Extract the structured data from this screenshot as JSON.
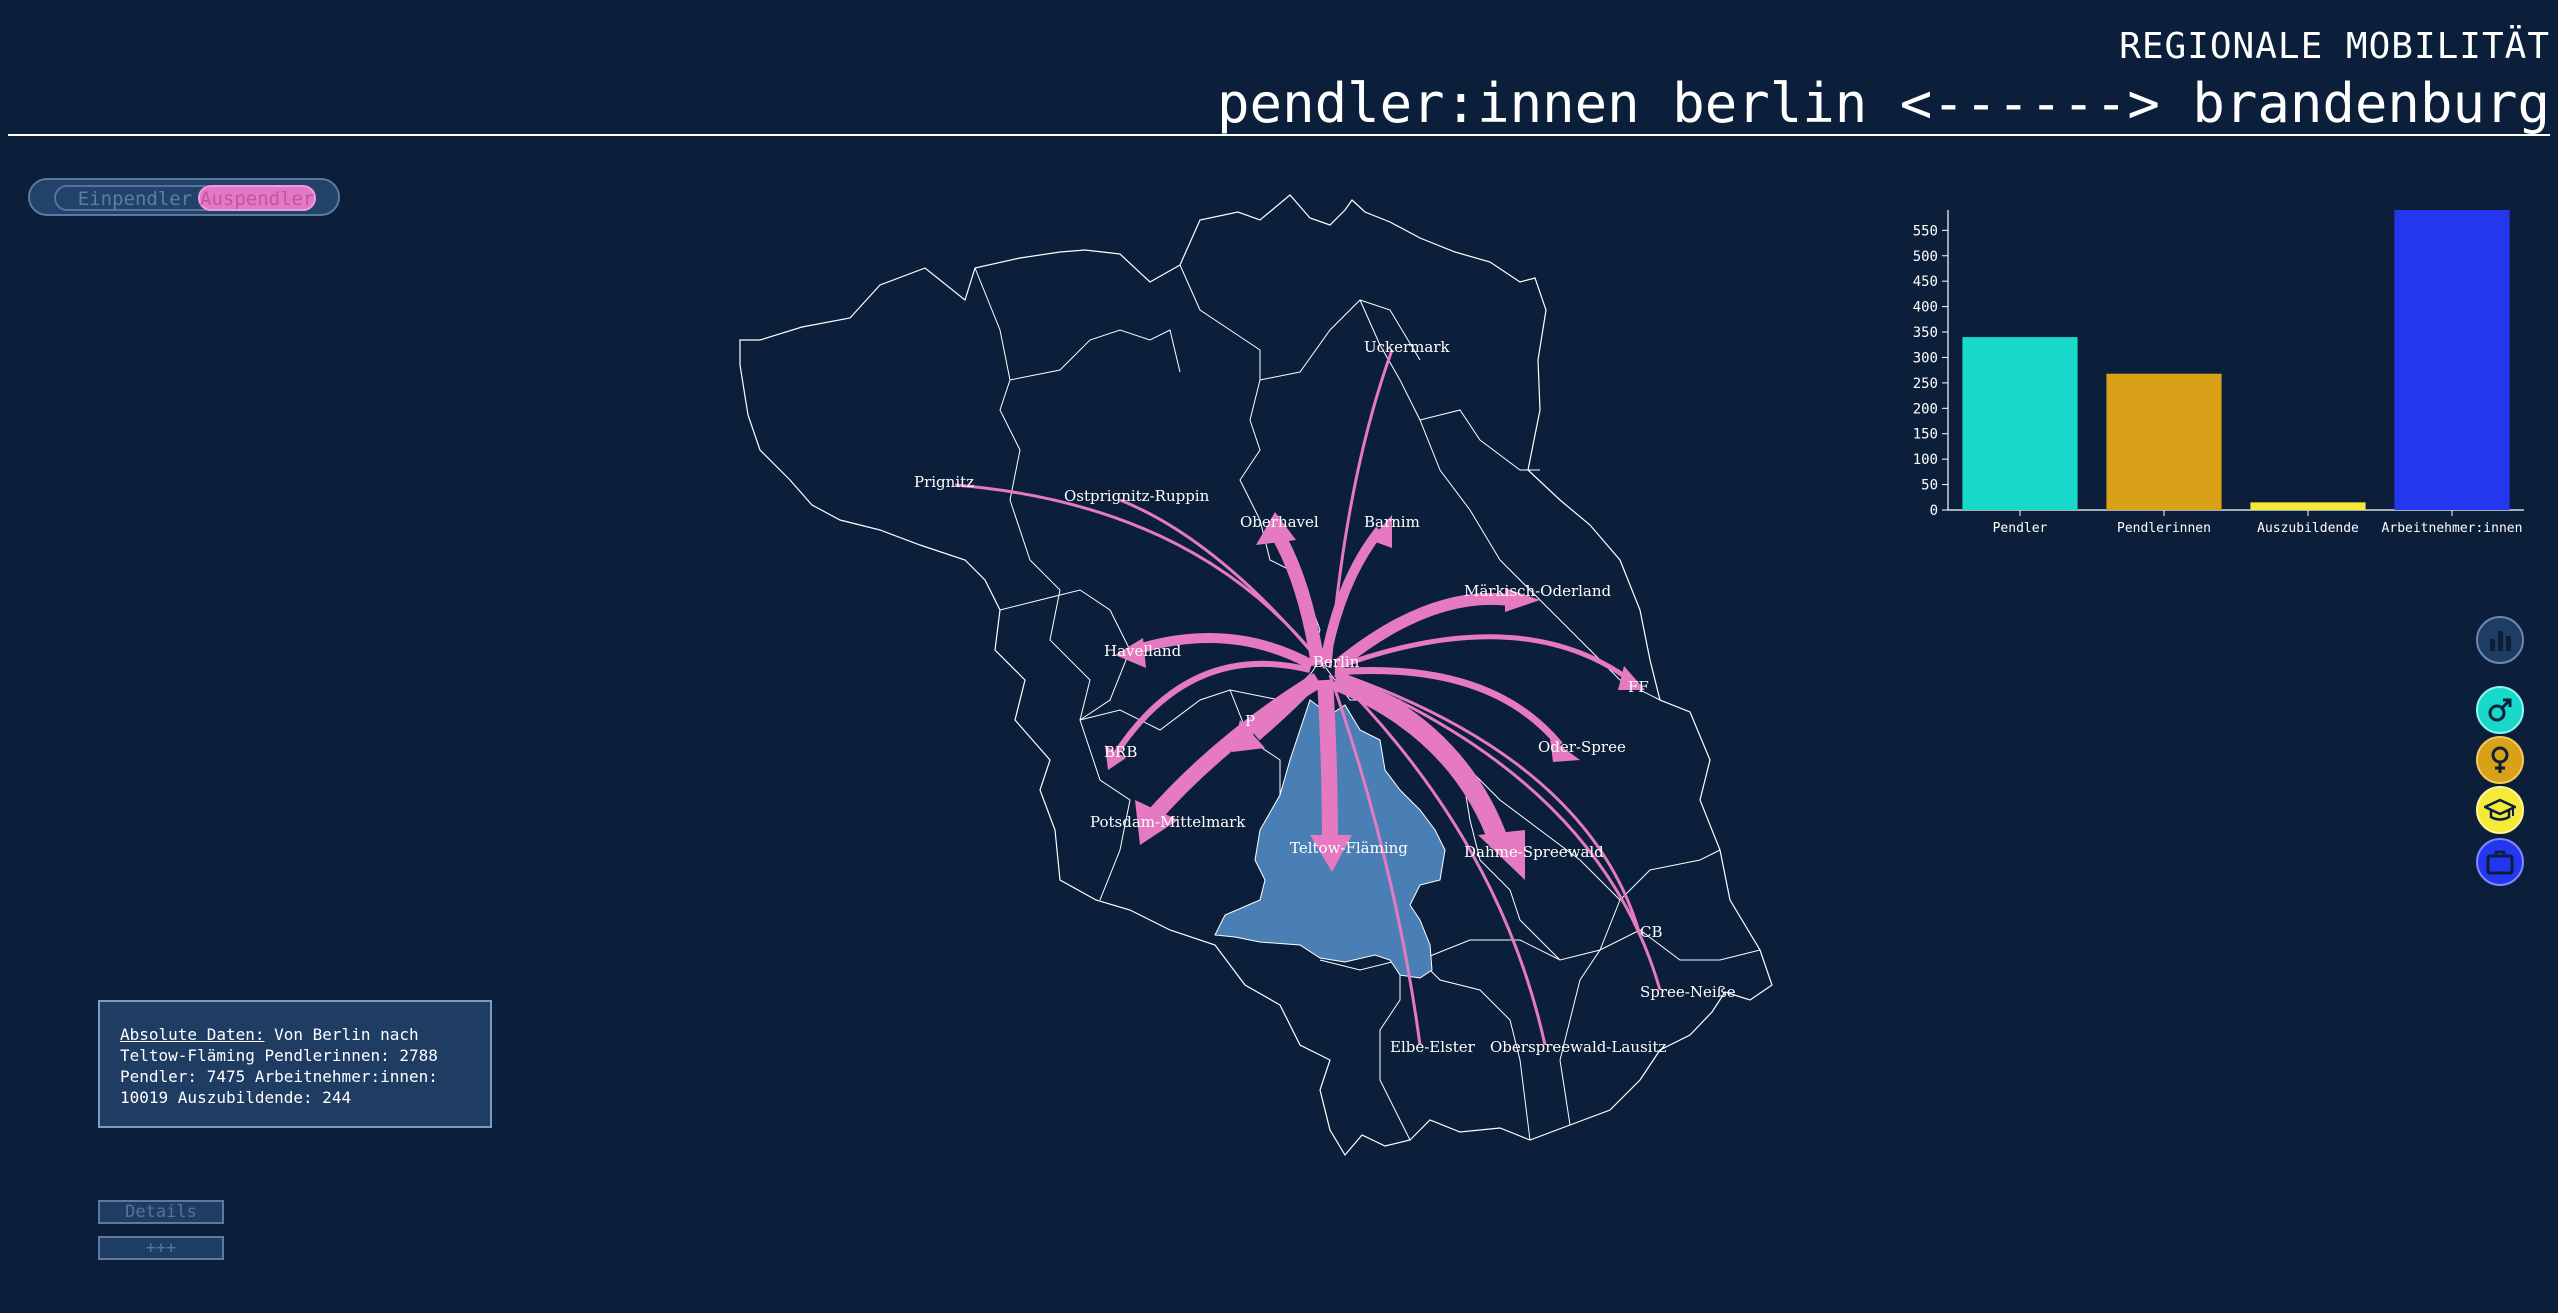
{
  "header": {
    "subtitle": "REGIONALE MOBILITÄT",
    "title": "pendler:innen berlin <------> brandenburg"
  },
  "toggle": {
    "einpendler_label": "Einpendler",
    "auspendler_label": "Auspendler",
    "active": "Auspendler"
  },
  "map": {
    "highlighted_district": "Teltow-Fläming",
    "origin": "Berlin",
    "labels": [
      "Uckermark",
      "Prignitz",
      "Ostprignitz-Ruppin",
      "Oberhavel",
      "Barnim",
      "Märkisch-Oderland",
      "Havelland",
      "Berlin",
      "FF",
      "P",
      "BRB",
      "Oder-Spree",
      "Potsdam-Mittelmark",
      "Teltow-Fläming",
      "Dahme-Spreewald",
      "CB",
      "Spree-Neiße",
      "Elbe-Elster",
      "Oberspreewald-Lausitz"
    ],
    "colors": {
      "flow": "#e57ac0",
      "highlight": "#4a7fb5",
      "border": "#ffffff"
    }
  },
  "chart_data": {
    "type": "bar",
    "categories": [
      "Pendler",
      "Pendlerinnen",
      "Auszubildende",
      "Arbeitnehmer:innen"
    ],
    "values": [
      340,
      268,
      15,
      590
    ],
    "colors": [
      "#18d9c9",
      "#d9a118",
      "#f5e93a",
      "#2536ef"
    ],
    "yticks": [
      0,
      50,
      100,
      150,
      200,
      250,
      300,
      350,
      400,
      450,
      500,
      550
    ],
    "ylim": [
      0,
      590
    ],
    "grid": false
  },
  "side_buttons": [
    {
      "icon": "bar-chart-icon",
      "color": "#1f3c62"
    },
    {
      "icon": "male-icon",
      "color": "#18d9c9"
    },
    {
      "icon": "female-icon",
      "color": "#d9a118"
    },
    {
      "icon": "graduation-cap-icon",
      "color": "#f5e93a"
    },
    {
      "icon": "briefcase-icon",
      "color": "#2536ef"
    }
  ],
  "info": {
    "title": "Absolute Daten:",
    "line1": " Von Berlin nach",
    "line2": "Teltow-Fläming Pendlerinnen: 2788",
    "line3": "Pendler: 7475 Arbeitnehmer:innen:",
    "line4": "10019 Auszubildende: 244"
  },
  "buttons": {
    "details": "Details",
    "more": "+++"
  }
}
